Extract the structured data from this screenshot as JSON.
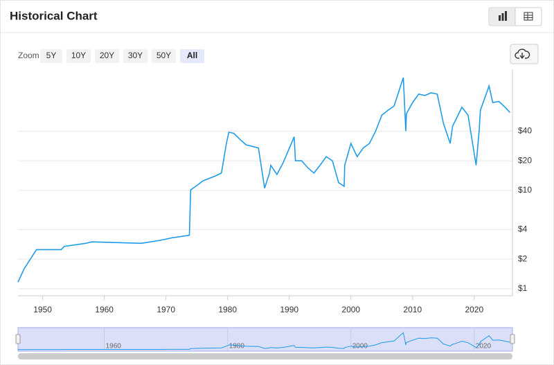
{
  "header": {
    "title": "Historical Chart"
  },
  "zoom": {
    "label": "Zoom",
    "options": [
      "5Y",
      "10Y",
      "20Y",
      "30Y",
      "50Y",
      "All"
    ],
    "selected": 5
  },
  "chart_data": {
    "type": "line",
    "log_scale": true,
    "grid": true,
    "color": "#1e9be9",
    "x": [
      1946,
      1947,
      1948,
      1949,
      1953,
      1953.5,
      1957,
      1958,
      1966,
      1969,
      1971,
      1973.8,
      1974,
      1975,
      1976,
      1978,
      1979,
      1979.8,
      1980.2,
      1981,
      1982,
      1983,
      1984,
      1985,
      1986,
      1986.8,
      1987,
      1988,
      1989,
      1990.8,
      1991,
      1992,
      1993,
      1994,
      1995,
      1996,
      1997,
      1998,
      1998.9,
      1999,
      2000,
      2001,
      2002,
      2003,
      2004,
      2005,
      2006,
      2007,
      2008.5,
      2008.9,
      2009,
      2010,
      2011,
      2012,
      2013,
      2014,
      2015,
      2016.1,
      2016.5,
      2017,
      2018,
      2019,
      2020.3,
      2020.8,
      2021,
      2022.4,
      2023,
      2024,
      2025,
      2025.8
    ],
    "values": [
      1.17,
      1.6,
      2.0,
      2.5,
      2.5,
      2.7,
      2.9,
      3.0,
      2.9,
      3.1,
      3.3,
      3.5,
      10.1,
      11.2,
      12.5,
      14,
      15,
      30,
      39,
      38,
      33,
      29,
      28,
      27,
      10.5,
      15,
      18,
      14.5,
      19,
      35,
      20,
      20,
      17,
      15,
      18,
      22,
      20,
      12,
      11,
      18,
      30,
      22,
      27,
      30,
      40,
      58,
      65,
      72,
      140,
      40,
      60,
      78,
      95,
      92,
      98,
      95,
      48,
      30,
      45,
      52,
      70,
      58,
      18,
      40,
      65,
      115,
      78,
      80,
      70,
      62
    ],
    "xlim": [
      1946,
      2026.2
    ],
    "xticks": [
      1950,
      1960,
      1970,
      1980,
      1990,
      2000,
      2010,
      2020
    ],
    "ylim": [
      0.85,
      170
    ],
    "yticks": [
      {
        "value": 1,
        "label": "$1"
      },
      {
        "value": 2,
        "label": "$2"
      },
      {
        "value": 4,
        "label": "$4"
      },
      {
        "value": 10,
        "label": "$10"
      },
      {
        "value": 20,
        "label": "$20"
      },
      {
        "value": 40,
        "label": "$40"
      }
    ]
  },
  "navigator": {
    "xticks": [
      1960,
      1980,
      2000,
      2020
    ]
  }
}
